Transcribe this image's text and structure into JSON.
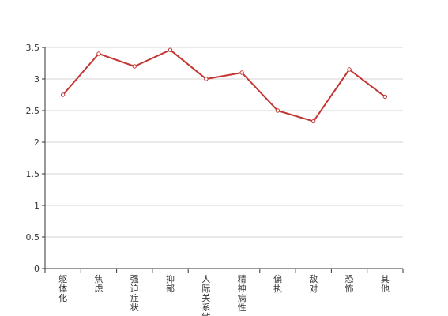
{
  "chart_data": {
    "type": "line",
    "categories": [
      "躯体化",
      "焦虑",
      "强迫症状",
      "抑郁",
      "人际关系敏感",
      "精神病性",
      "偏执",
      "敌对",
      "恐怖",
      "其他"
    ],
    "series": [
      {
        "values": [
          2.75,
          3.4,
          3.2,
          3.46,
          3.0,
          3.1,
          2.5,
          2.33,
          3.15,
          2.72
        ]
      }
    ],
    "yticks": [
      0,
      0.5,
      1,
      1.5,
      2,
      2.5,
      3,
      3.5
    ],
    "ytick_labels": [
      "0",
      "0.5",
      "1",
      "1.5",
      "2",
      "2.5",
      "3",
      "3.5"
    ],
    "ylim": [
      0,
      3.5
    ],
    "title": "",
    "xlabel": "",
    "ylabel": "",
    "grid": true,
    "line_color": "#c23531",
    "marker_fill": "#ffffff"
  }
}
